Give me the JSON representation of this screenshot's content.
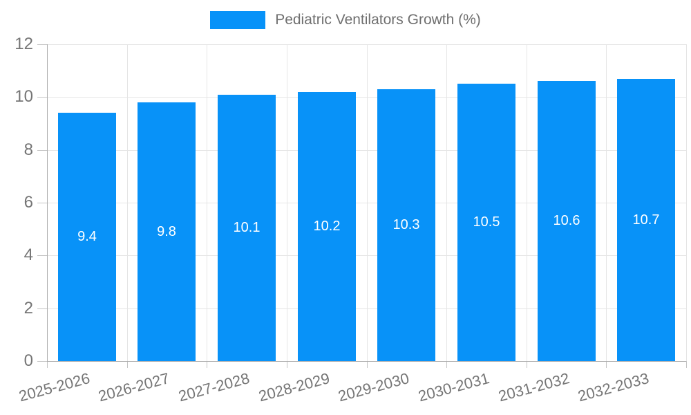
{
  "chart_data": {
    "type": "bar",
    "legend": "Pediatric Ventilators Growth (%)",
    "categories": [
      "2025-2026",
      "2026-2027",
      "2027-2028",
      "2028-2029",
      "2029-2030",
      "2030-2031",
      "2031-2032",
      "2032-2033"
    ],
    "values": [
      9.4,
      9.8,
      10.1,
      10.2,
      10.3,
      10.5,
      10.6,
      10.7
    ],
    "value_labels": [
      "9.4",
      "9.8",
      "10.1",
      "10.2",
      "10.3",
      "10.5",
      "10.6",
      "10.7"
    ],
    "xlabel": "",
    "ylabel": "",
    "ylim": [
      0,
      12
    ],
    "yticks": [
      0,
      2,
      4,
      6,
      8,
      10,
      12
    ],
    "grid": "on",
    "legend_position": "top",
    "x_label_rotation_deg": -15,
    "colors": {
      "bar": "#0892f8",
      "gridline": "#e5e5e5",
      "axis_line": "#adadad",
      "axis_text": "#757575",
      "value_text": "#ffffff",
      "legend_text": "#6f6f6f"
    }
  }
}
